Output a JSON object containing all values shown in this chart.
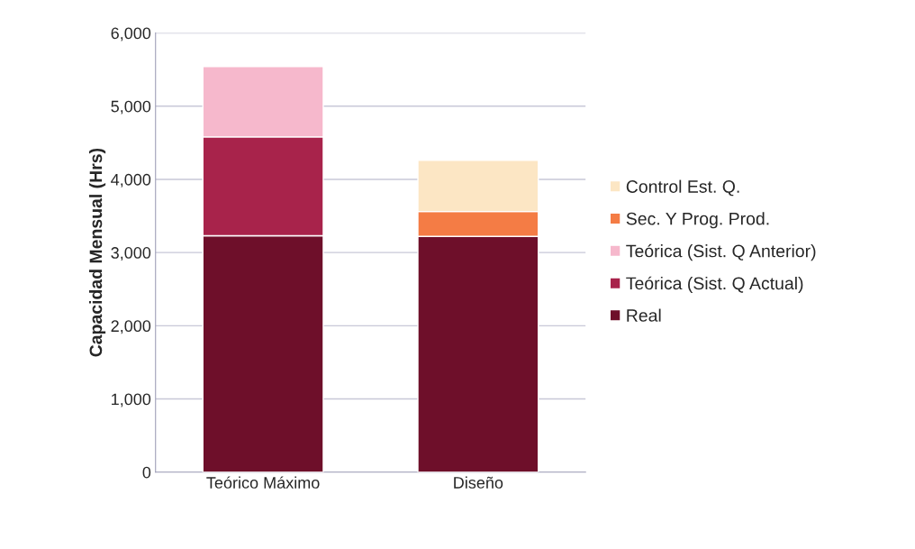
{
  "chart_data": {
    "type": "bar",
    "stacked": true,
    "ylabel": "Capacidad Mensual (Hrs)",
    "categories": [
      "Teórico Máximo",
      "Diseño"
    ],
    "series": [
      {
        "name": "Real",
        "color": "#6e0f2a",
        "values": [
          3230,
          3220
        ]
      },
      {
        "name": "Teórica (Sist. Q Actual)",
        "color": "#a8234b",
        "values": [
          1350,
          null
        ]
      },
      {
        "name": "Teórica (Sist. Q Anterior)",
        "color": "#f6b8cc",
        "values": [
          960,
          null
        ]
      },
      {
        "name": "Sec. Y Prog. Prod.",
        "color": "#f47c45",
        "values": [
          null,
          340
        ]
      },
      {
        "name": "Control Est. Q.",
        "color": "#fce6c4",
        "values": [
          null,
          700
        ]
      }
    ],
    "ylim": [
      0,
      6000
    ],
    "yticks": [
      {
        "value": 0,
        "label": "0"
      },
      {
        "value": 1000,
        "label": "1,000"
      },
      {
        "value": 2000,
        "label": "2,000"
      },
      {
        "value": 3000,
        "label": "3,000"
      },
      {
        "value": 4000,
        "label": "4,000"
      },
      {
        "value": 5000,
        "label": "5,000"
      },
      {
        "value": 6000,
        "label": "6,000"
      }
    ],
    "grid": "y",
    "legend": "right"
  }
}
